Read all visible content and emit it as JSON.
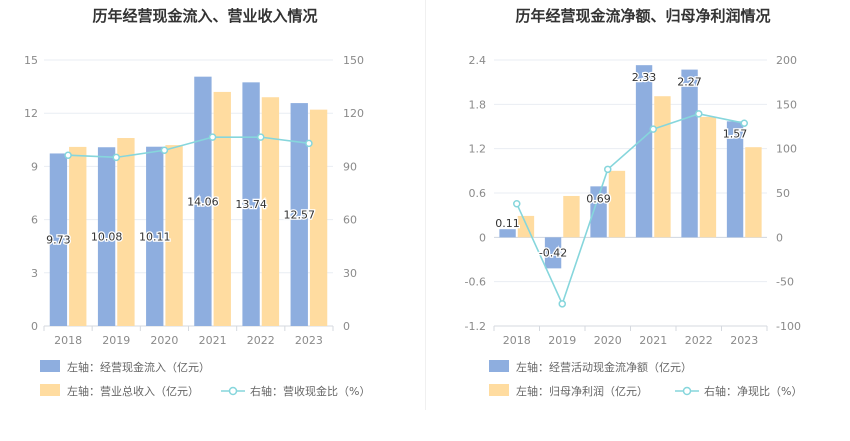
{
  "chart_data": [
    {
      "type": "bar",
      "title": "历年经营现金流入、营业收入情况",
      "categories": [
        "2018",
        "2019",
        "2020",
        "2021",
        "2022",
        "2023"
      ],
      "left_axis": {
        "min": 0,
        "max": 15,
        "ticks": [
          0,
          3,
          6,
          9,
          12,
          15
        ]
      },
      "right_axis": {
        "min": 0,
        "max": 150,
        "ticks": [
          0,
          30,
          60,
          90,
          120,
          150
        ]
      },
      "series": [
        {
          "name": "左轴：经营现金流入（亿元）",
          "kind": "bar",
          "axis": "left",
          "color": "#8eaedf",
          "values": [
            9.73,
            10.08,
            10.11,
            14.06,
            13.74,
            12.57
          ],
          "labels": [
            "9.73",
            "10.08",
            "10.11",
            "14.06",
            "13.74",
            "12.57"
          ]
        },
        {
          "name": "左轴：营业总收入（亿元）",
          "kind": "bar",
          "axis": "left",
          "color": "#ffdca0",
          "values": [
            10.1,
            10.6,
            10.2,
            13.2,
            12.9,
            12.2
          ]
        },
        {
          "name": "右轴：营收现金比（%）",
          "kind": "line",
          "axis": "right",
          "color": "#86d6dc",
          "values": [
            96.3,
            95.1,
            99.1,
            106.5,
            106.5,
            103.0
          ]
        }
      ],
      "legend": [
        {
          "label": "左轴：经营现金流入（亿元）",
          "kind": "bar",
          "color": "#8eaedf"
        },
        {
          "label": "左轴：营业总收入（亿元）",
          "kind": "bar",
          "color": "#ffdca0"
        },
        {
          "label": "右轴：营收现金比（%）",
          "kind": "line",
          "color": "#86d6dc"
        }
      ]
    },
    {
      "type": "bar",
      "title": "历年经营现金流净额、归母净利润情况",
      "categories": [
        "2018",
        "2019",
        "2020",
        "2021",
        "2022",
        "2023"
      ],
      "left_axis": {
        "min": -1.2,
        "max": 2.4,
        "ticks": [
          -1.2,
          -0.6,
          0,
          0.6,
          1.2,
          1.8,
          2.4
        ]
      },
      "right_axis": {
        "min": -100,
        "max": 200,
        "ticks": [
          -100,
          -50,
          0,
          50,
          100,
          150,
          200
        ]
      },
      "series": [
        {
          "name": "左轴：经营活动现金流净额（亿元）",
          "kind": "bar",
          "axis": "left",
          "color": "#8eaedf",
          "values": [
            0.11,
            -0.42,
            0.69,
            2.33,
            2.27,
            1.57
          ],
          "labels": [
            "0.11",
            "-0.42",
            "0.69",
            "2.33",
            "2.27",
            "1.57"
          ]
        },
        {
          "name": "左轴：归母净利润（亿元）",
          "kind": "bar",
          "axis": "left",
          "color": "#ffdca0",
          "values": [
            0.29,
            0.56,
            0.9,
            1.91,
            1.63,
            1.22
          ]
        },
        {
          "name": "右轴：净现比（%）",
          "kind": "line",
          "axis": "right",
          "color": "#86d6dc",
          "values": [
            37.9,
            -75.0,
            76.7,
            122.0,
            139.3,
            128.7
          ]
        }
      ],
      "legend": [
        {
          "label": "左轴：经营活动现金流净额（亿元）",
          "kind": "bar",
          "color": "#8eaedf"
        },
        {
          "label": "左轴：归母净利润（亿元）",
          "kind": "bar",
          "color": "#ffdca0"
        },
        {
          "label": "右轴：净现比（%）",
          "kind": "line",
          "color": "#86d6dc"
        }
      ]
    }
  ]
}
